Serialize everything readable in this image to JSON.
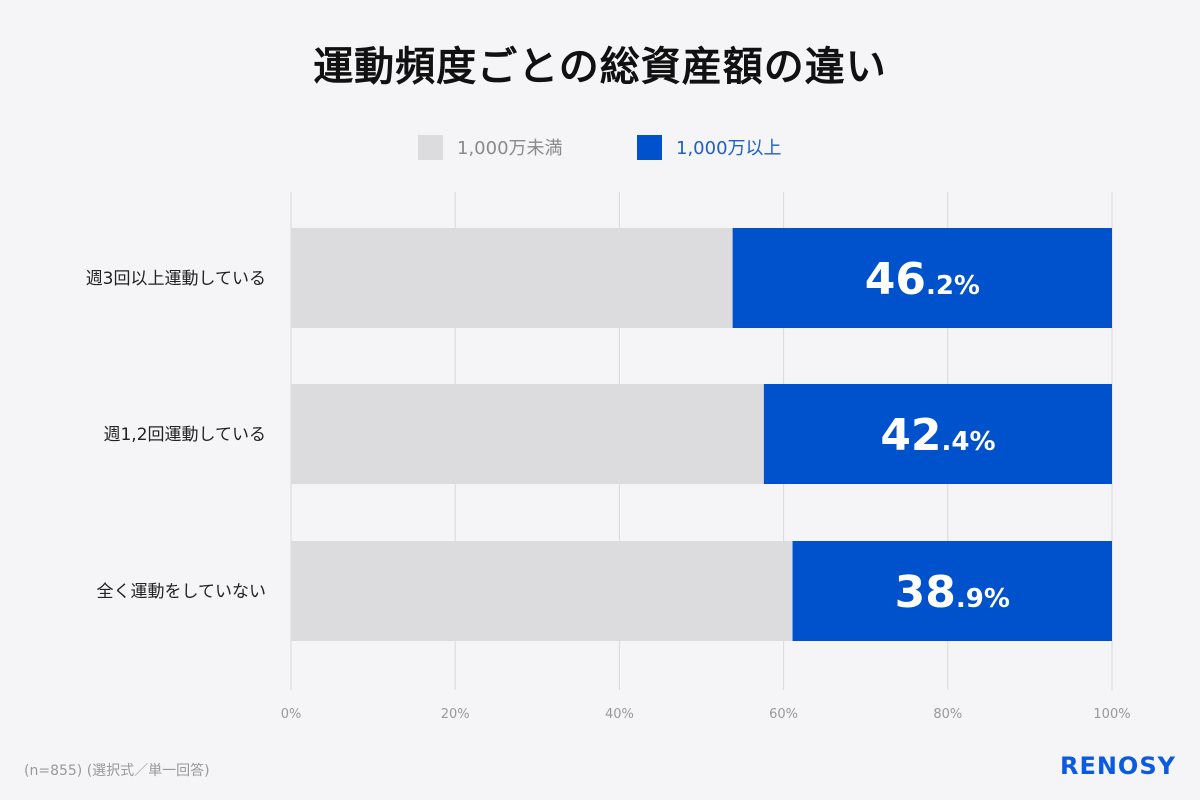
{
  "chart_data": {
    "type": "bar",
    "stacked": true,
    "orientation": "horizontal",
    "title": "運動頻度ごとの総資産額の違い",
    "categories": [
      "週3回以上運動している",
      "週1,2回運動している",
      "全く運動をしていない"
    ],
    "series": [
      {
        "name": "1,000万未満",
        "values": [
          53.8,
          57.6,
          61.1
        ],
        "color": "#dcdbde"
      },
      {
        "name": "1,000万以上",
        "values": [
          46.2,
          42.4,
          38.9
        ],
        "color": "#0052cc"
      }
    ],
    "data_labels": [
      "46.2%",
      "42.4%",
      "38.9%"
    ],
    "xlim": [
      0,
      100
    ],
    "xticks": [
      "0%",
      "20%",
      "40%",
      "60%",
      "80%",
      "100%"
    ],
    "grid": true,
    "legend_position": "top"
  },
  "legend": [
    {
      "label": "1,000万未満",
      "color": "#dcdbde",
      "text_color": "#8a8a8a"
    },
    {
      "label": "1,000万以上",
      "color": "#0052cc",
      "text_color": "#1f5fc4"
    }
  ],
  "footnote": "(n=855) (選択式／単一回答)",
  "logo": "RENOSY"
}
